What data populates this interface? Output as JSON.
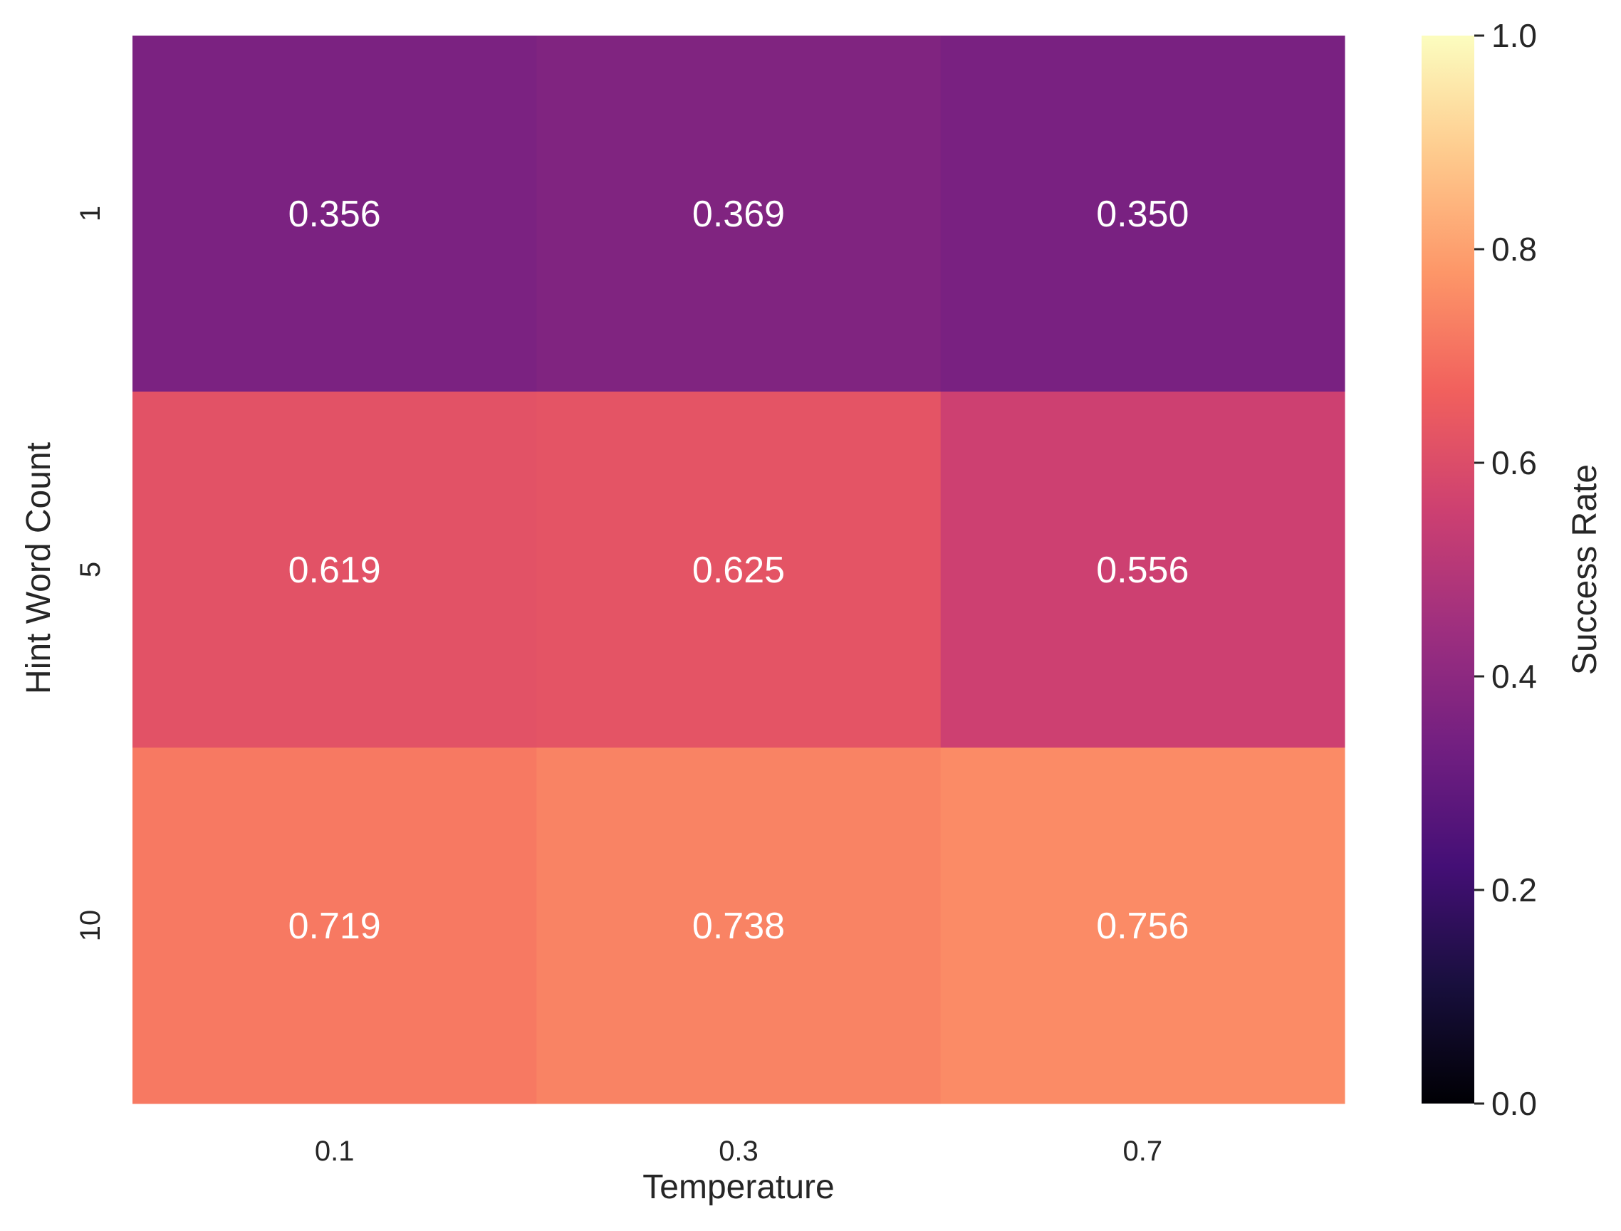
{
  "chart_data": {
    "type": "heatmap",
    "xlabel": "Temperature",
    "ylabel": "Hint Word Count",
    "x_categories": [
      "0.1",
      "0.3",
      "0.7"
    ],
    "y_categories": [
      "1",
      "5",
      "10"
    ],
    "values": [
      [
        0.356,
        0.369,
        0.35
      ],
      [
        0.619,
        0.625,
        0.556
      ],
      [
        0.719,
        0.738,
        0.756
      ]
    ],
    "cell_labels": [
      [
        "0.356",
        "0.369",
        "0.350"
      ],
      [
        "0.619",
        "0.625",
        "0.556"
      ],
      [
        "0.719",
        "0.738",
        "0.756"
      ]
    ],
    "colorbar": {
      "label": "Success Rate",
      "range": [
        0.0,
        1.0
      ],
      "ticks": [
        "0.0",
        "0.2",
        "0.4",
        "0.6",
        "0.8",
        "1.0"
      ],
      "colormap": "magma",
      "stops": [
        "#000004",
        "#180f3d",
        "#440f76",
        "#721f81",
        "#9e2f7f",
        "#cd4071",
        "#f1605d",
        "#fd9668",
        "#feca8d",
        "#fcfdbf"
      ]
    },
    "grid": false,
    "annotation_color": "#ffffff"
  }
}
